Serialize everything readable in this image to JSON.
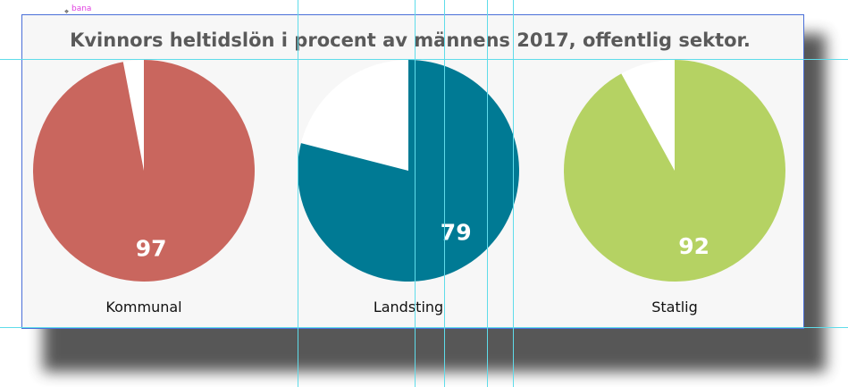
{
  "frame_label": "bana",
  "chart_data": {
    "type": "pie",
    "title": "Kvinnors heltidslön i procent av männens 2017, offentlig sektor.",
    "series": [
      {
        "category": "Kommunal",
        "value": 97,
        "color": "#c9665e"
      },
      {
        "category": "Landsting",
        "value": 79,
        "color": "#007a94"
      },
      {
        "category": "Statlig",
        "value": 92,
        "color": "#b5d263"
      }
    ],
    "remainder_color": "#ffffff",
    "total": 100
  }
}
